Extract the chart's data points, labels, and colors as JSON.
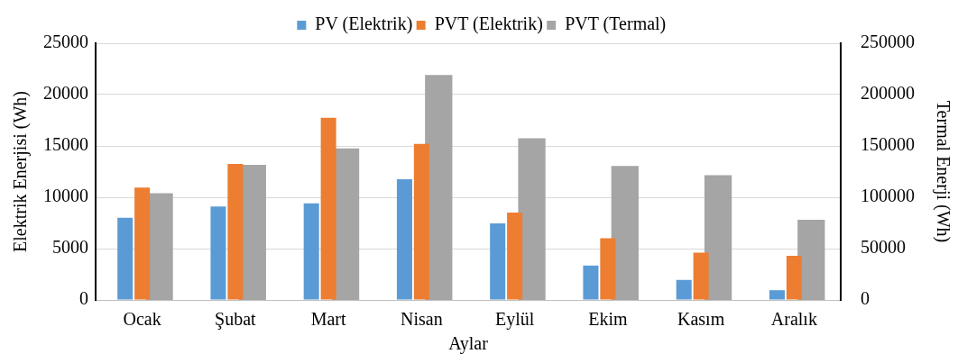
{
  "chart_data": {
    "type": "bar",
    "xlabel": "Aylar",
    "ylabel": "Elektrik Enerjisi (Wh)",
    "y2label": "Termal Enerji (Wh)",
    "categories": [
      "Ocak",
      "Şubat",
      "Mart",
      "Nisan",
      "Eylül",
      "Ekim",
      "Kasım",
      "Aralık"
    ],
    "series": [
      {
        "name": "PV (Elektrik)",
        "color": "#5b9bd5",
        "values": [
          8000,
          9100,
          9400,
          11750,
          7450,
          3350,
          1950,
          950
        ]
      },
      {
        "name": "PVT (Elektrik)",
        "color": "#ed7d31",
        "values": [
          10950,
          13250,
          17750,
          15200,
          8500,
          6000,
          4600,
          4300
        ]
      },
      {
        "name": "PVT (Termal)",
        "color": "#a5a5a5",
        "axis": "y2",
        "values": [
          104000,
          131500,
          147500,
          219000,
          157500,
          130500,
          121500,
          78000
        ]
      }
    ],
    "ylim": [
      0,
      25000
    ],
    "yticks": [
      0,
      5000,
      10000,
      15000,
      20000,
      25000
    ],
    "y2lim": [
      0,
      250000
    ],
    "y2ticks": [
      0,
      50000,
      100000,
      150000,
      200000,
      250000
    ],
    "grid": "y",
    "legend": "top"
  }
}
